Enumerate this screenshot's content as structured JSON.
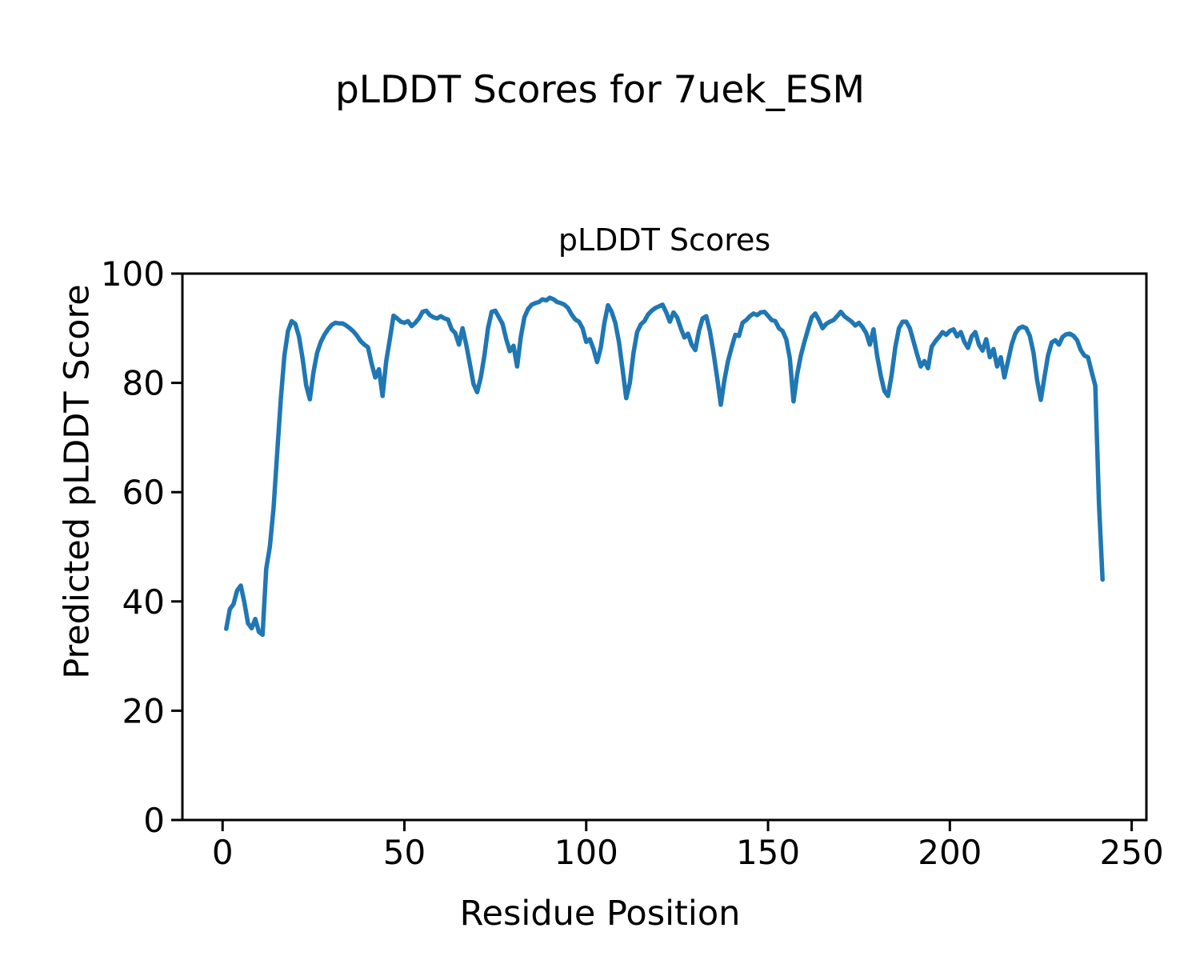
{
  "figure": {
    "title": "pLDDT Scores for 7uek_ESM"
  },
  "chart_data": {
    "type": "line",
    "title": "pLDDT Scores",
    "xlabel": "Residue Position",
    "ylabel": "Predicted pLDDT Score",
    "xlim": [
      -11.05,
      254.05
    ],
    "ylim": [
      0,
      100
    ],
    "xticks": [
      0,
      50,
      100,
      150,
      200,
      250
    ],
    "yticks": [
      0,
      20,
      40,
      60,
      80,
      100
    ],
    "grid": false,
    "legend": "none",
    "line_color": "#1f77b4",
    "series_name": "pLDDT",
    "x_start": 1,
    "x_step": 1,
    "x_end": 242,
    "y": [
      35.0,
      38.6,
      39.5,
      42.0,
      42.9,
      39.8,
      36.0,
      35.1,
      36.8,
      34.4,
      33.9,
      46.0,
      50.0,
      57.0,
      67.0,
      77.0,
      85.0,
      89.5,
      91.3,
      90.8,
      88.5,
      84.5,
      79.5,
      77.0,
      82.0,
      85.5,
      87.5,
      88.8,
      89.8,
      90.6,
      91.0,
      90.9,
      90.9,
      90.5,
      90.0,
      89.4,
      88.6,
      87.6,
      87.0,
      86.5,
      83.5,
      81.0,
      82.5,
      77.6,
      84.0,
      88.0,
      92.3,
      91.8,
      91.2,
      91.0,
      91.3,
      90.4,
      91.0,
      91.8,
      93.0,
      93.2,
      92.4,
      92.0,
      91.8,
      92.2,
      91.8,
      91.6,
      89.8,
      89.1,
      87.0,
      90.0,
      87.0,
      83.5,
      79.8,
      78.3,
      81.0,
      85.0,
      90.0,
      93.0,
      93.2,
      92.0,
      90.8,
      88.0,
      85.8,
      86.8,
      83.0,
      88.4,
      92.0,
      93.5,
      94.3,
      94.6,
      94.8,
      95.3,
      95.1,
      95.6,
      95.3,
      94.8,
      94.6,
      94.3,
      93.7,
      92.5,
      91.6,
      91.2,
      90.0,
      87.5,
      88.0,
      86.2,
      83.8,
      86.5,
      91.0,
      94.2,
      93.0,
      91.0,
      87.5,
      82.5,
      77.2,
      80.0,
      85.5,
      89.3,
      90.7,
      91.3,
      92.5,
      93.2,
      93.7,
      94.0,
      94.3,
      92.9,
      91.2,
      92.9,
      92.0,
      90.0,
      88.3,
      89.0,
      87.0,
      86.0,
      89.5,
      91.8,
      92.2,
      89.5,
      85.5,
      81.0,
      76.0,
      80.5,
      84.0,
      86.5,
      88.8,
      88.6,
      91.0,
      91.5,
      92.2,
      92.7,
      92.4,
      92.9,
      93.0,
      92.3,
      91.5,
      91.3,
      90.0,
      89.5,
      88.0,
      84.5,
      76.6,
      81.5,
      85.0,
      87.5,
      89.8,
      92.0,
      92.7,
      91.5,
      90.0,
      90.8,
      91.2,
      91.5,
      92.2,
      93.0,
      92.2,
      91.7,
      91.2,
      90.5,
      91.0,
      90.2,
      89.1,
      87.0,
      89.8,
      85.0,
      81.3,
      78.5,
      77.6,
      81.5,
      86.5,
      90.0,
      91.2,
      91.2,
      90.0,
      87.6,
      85.2,
      83.0,
      84.0,
      82.7,
      86.6,
      87.6,
      88.4,
      89.3,
      88.8,
      89.5,
      89.8,
      88.5,
      89.3,
      87.5,
      86.4,
      88.5,
      89.3,
      87.0,
      85.9,
      88.0,
      84.7,
      86.2,
      83.0,
      84.7,
      81.0,
      84.0,
      87.0,
      89.0,
      90.0,
      90.3,
      90.0,
      88.6,
      85.5,
      80.5,
      76.9,
      81.0,
      85.0,
      87.4,
      87.8,
      87.0,
      88.4,
      88.9,
      89.0,
      88.6,
      87.8,
      86.0,
      85.0,
      84.7,
      82.0,
      79.5,
      58.0,
      44.0
    ]
  }
}
